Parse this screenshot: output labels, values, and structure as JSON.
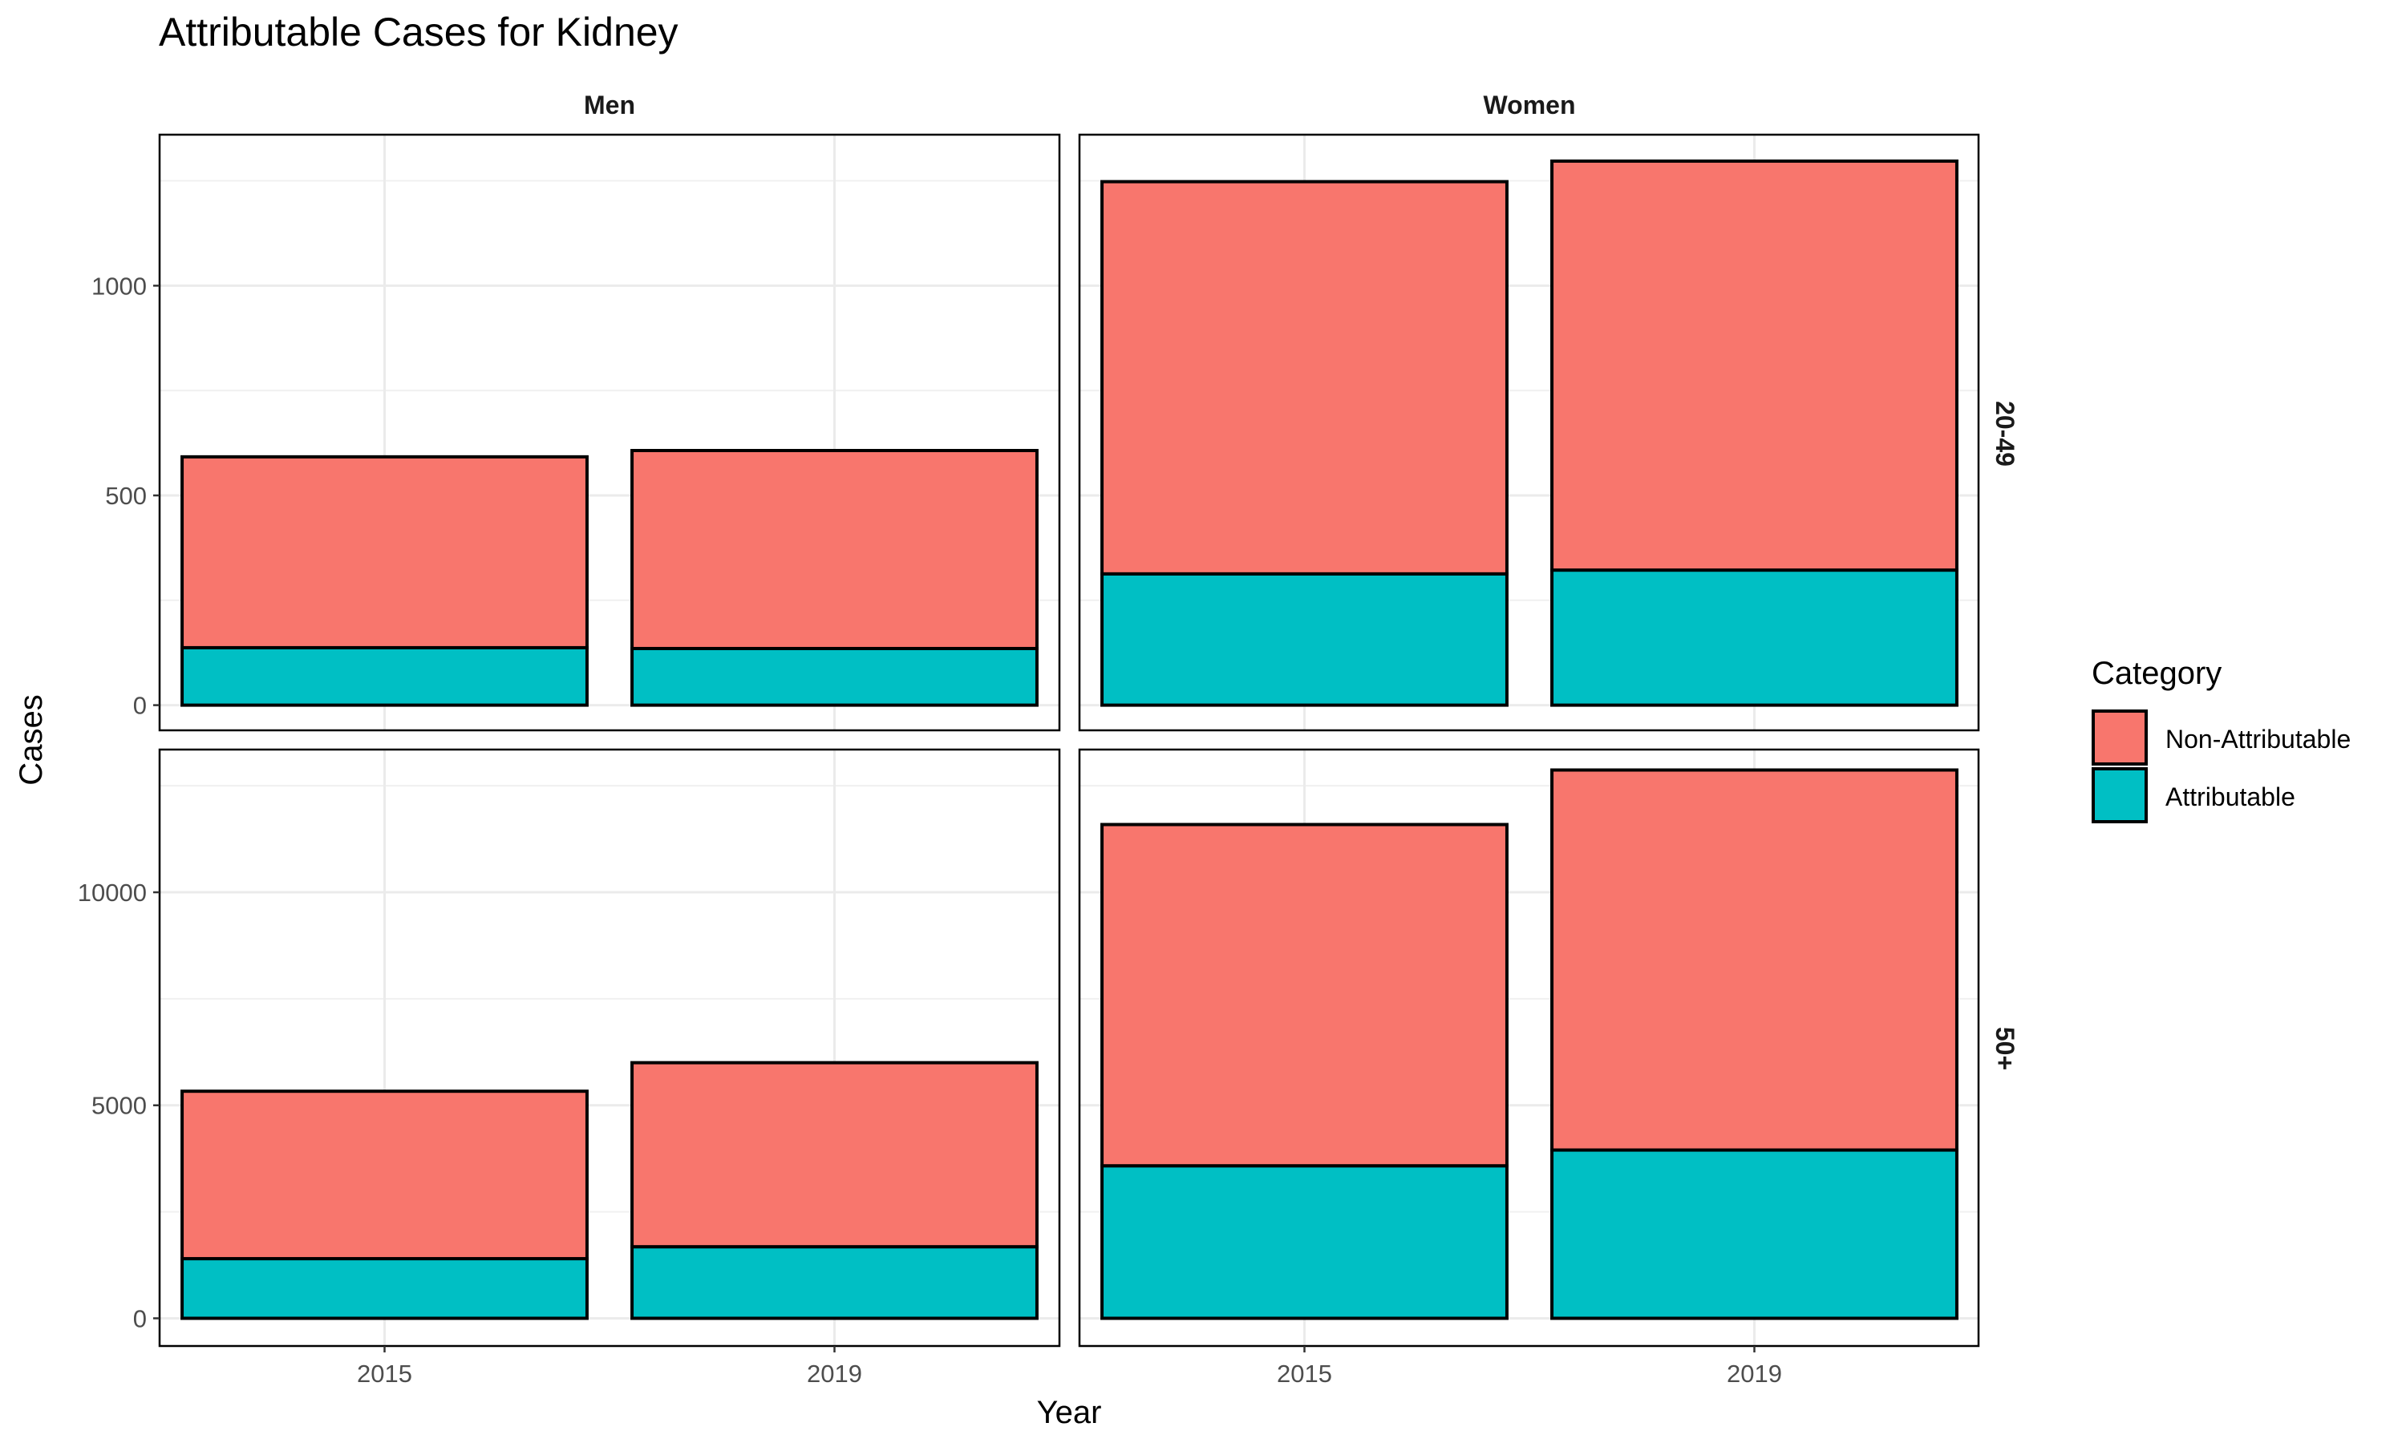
{
  "chart_data": {
    "type": "bar",
    "stacked": true,
    "title": "Attributable Cases for Kidney",
    "xlabel": "Year",
    "ylabel": "Cases",
    "categories": [
      "2015",
      "2019"
    ],
    "legend": {
      "title": "Category",
      "position": "right",
      "entries": [
        {
          "name": "Non-Attributable",
          "color": "#F8766D"
        },
        {
          "name": "Attributable",
          "color": "#00BFC4"
        }
      ]
    },
    "grid": true,
    "facet_columns": [
      "Men",
      "Women"
    ],
    "facet_rows": [
      {
        "label": "20-49",
        "ylim": [
          -60,
          1360
        ],
        "yticks": [
          0,
          500,
          1000
        ],
        "tick_labels": [
          "0",
          "500",
          "1000"
        ]
      },
      {
        "label": "50+",
        "ylim": [
          -650,
          13350
        ],
        "yticks": [
          0,
          5000,
          10000
        ],
        "tick_labels": [
          "0",
          "5000",
          "10000"
        ]
      }
    ],
    "panels": [
      {
        "row": "20-49",
        "column": "Men",
        "series": [
          {
            "name": "Attributable",
            "values": [
              137,
              135
            ]
          },
          {
            "name": "Non-Attributable",
            "values": [
              455,
              472
            ]
          }
        ]
      },
      {
        "row": "20-49",
        "column": "Women",
        "series": [
          {
            "name": "Attributable",
            "values": [
              313,
              322
            ]
          },
          {
            "name": "Non-Attributable",
            "values": [
              935,
              975
            ]
          }
        ]
      },
      {
        "row": "50+",
        "column": "Men",
        "series": [
          {
            "name": "Attributable",
            "values": [
              1400,
              1680
            ]
          },
          {
            "name": "Non-Attributable",
            "values": [
              3930,
              4320
            ]
          }
        ]
      },
      {
        "row": "50+",
        "column": "Women",
        "series": [
          {
            "name": "Attributable",
            "values": [
              3580,
              3950
            ]
          },
          {
            "name": "Non-Attributable",
            "values": [
              8010,
              8920
            ]
          }
        ]
      }
    ]
  }
}
